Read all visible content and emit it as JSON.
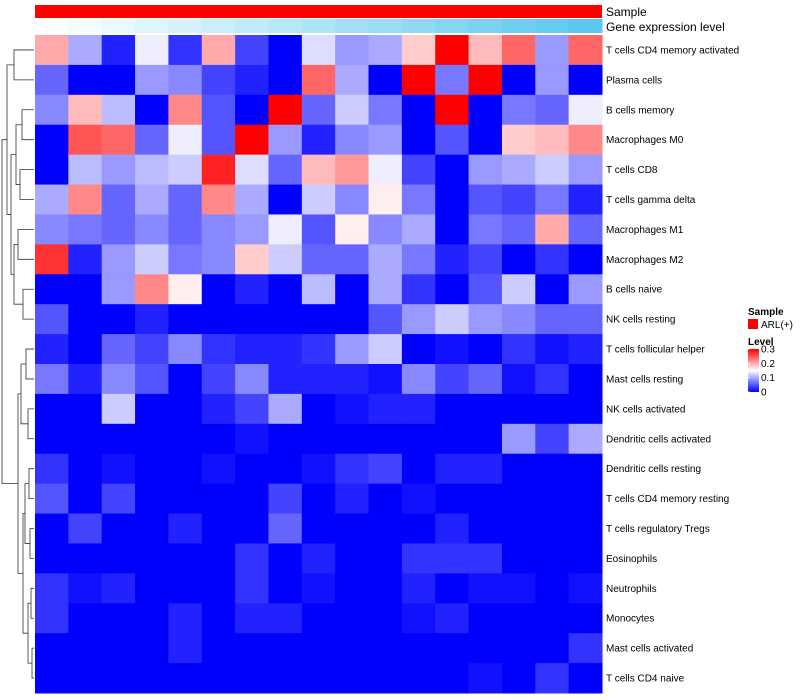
{
  "chart_data": {
    "type": "heatmap",
    "annotations": [
      {
        "name": "Sample",
        "values": [
          "ARL(+)"
        ],
        "colors": [
          "#ff0000"
        ]
      },
      {
        "name": "Gene expression level",
        "gradient_from": "#ffffff",
        "gradient_to": "#5cc8ef"
      }
    ],
    "rows": [
      "T cells CD4 memory activated",
      "Plasma cells",
      "B cells memory",
      "Macrophages M0",
      "T cells CD8",
      "T cells gamma delta",
      "Macrophages M1",
      "Macrophages M2",
      "B cells naive",
      "NK cells resting",
      "T cells follicular helper",
      "Mast cells resting",
      "NK cells activated",
      "Dendritic cells activated",
      "Dendritic cells resting",
      "T cells CD4 memory resting",
      "T cells regulatory  Tregs",
      "Eosinophils",
      "Neutrophils",
      "Monocytes",
      "Mast cells activated",
      "T cells CD4 naive"
    ],
    "n_columns": 17,
    "values": [
      [
        0.2,
        0.1,
        0.02,
        0.14,
        0.03,
        0.2,
        0.04,
        0.0,
        0.13,
        0.09,
        0.1,
        0.18,
        0.3,
        0.19,
        0.24,
        0.09,
        0.24
      ],
      [
        0.06,
        0.0,
        0.0,
        0.09,
        0.08,
        0.04,
        0.02,
        0.0,
        0.24,
        0.1,
        0.0,
        0.3,
        0.07,
        0.3,
        0.0,
        0.09,
        0.0
      ],
      [
        0.08,
        0.19,
        0.11,
        0.0,
        0.22,
        0.05,
        0.0,
        0.3,
        0.06,
        0.12,
        0.07,
        0.0,
        0.3,
        0.0,
        0.07,
        0.06,
        0.14
      ],
      [
        0.0,
        0.25,
        0.24,
        0.06,
        0.14,
        0.05,
        0.3,
        0.09,
        0.02,
        0.08,
        0.09,
        0.0,
        0.05,
        0.0,
        0.18,
        0.19,
        0.22
      ],
      [
        0.0,
        0.11,
        0.09,
        0.11,
        0.12,
        0.28,
        0.13,
        0.06,
        0.19,
        0.21,
        0.14,
        0.04,
        0.0,
        0.09,
        0.1,
        0.12,
        0.09
      ],
      [
        0.1,
        0.22,
        0.06,
        0.1,
        0.06,
        0.22,
        0.1,
        0.0,
        0.12,
        0.08,
        0.16,
        0.07,
        0.0,
        0.05,
        0.04,
        0.07,
        0.02
      ],
      [
        0.08,
        0.07,
        0.06,
        0.08,
        0.06,
        0.08,
        0.09,
        0.14,
        0.05,
        0.16,
        0.08,
        0.1,
        0.0,
        0.07,
        0.06,
        0.2,
        0.06
      ],
      [
        0.27,
        0.02,
        0.09,
        0.12,
        0.07,
        0.08,
        0.18,
        0.12,
        0.06,
        0.06,
        0.1,
        0.07,
        0.02,
        0.04,
        0.0,
        0.03,
        0.0
      ],
      [
        0.0,
        0.0,
        0.09,
        0.22,
        0.16,
        0.0,
        0.02,
        0.0,
        0.11,
        0.0,
        0.1,
        0.03,
        0.0,
        0.05,
        0.12,
        0.0,
        0.09
      ],
      [
        0.05,
        0.0,
        0.0,
        0.02,
        0.0,
        0.0,
        0.0,
        0.0,
        0.0,
        0.0,
        0.05,
        0.09,
        0.12,
        0.09,
        0.08,
        0.06,
        0.06
      ],
      [
        0.02,
        0.0,
        0.06,
        0.04,
        0.08,
        0.03,
        0.02,
        0.02,
        0.03,
        0.09,
        0.12,
        0.0,
        0.01,
        0.0,
        0.03,
        0.01,
        0.02
      ],
      [
        0.07,
        0.02,
        0.08,
        0.05,
        0.0,
        0.04,
        0.08,
        0.02,
        0.02,
        0.02,
        0.01,
        0.08,
        0.04,
        0.06,
        0.01,
        0.03,
        0.0
      ],
      [
        0.0,
        0.0,
        0.12,
        0.0,
        0.0,
        0.02,
        0.04,
        0.1,
        0.0,
        0.01,
        0.02,
        0.02,
        0.0,
        0.0,
        0.0,
        0.0,
        0.0
      ],
      [
        0.0,
        0.0,
        0.0,
        0.0,
        0.0,
        0.0,
        0.01,
        0.0,
        0.0,
        0.0,
        0.0,
        0.0,
        0.0,
        0.0,
        0.09,
        0.04,
        0.1
      ],
      [
        0.03,
        0.0,
        0.01,
        0.0,
        0.0,
        0.01,
        0.0,
        0.0,
        0.01,
        0.03,
        0.04,
        0.0,
        0.02,
        0.02,
        0.0,
        0.0,
        0.0
      ],
      [
        0.05,
        0.0,
        0.04,
        0.0,
        0.0,
        0.0,
        0.0,
        0.04,
        0.0,
        0.02,
        0.0,
        0.01,
        0.0,
        0.0,
        0.0,
        0.0,
        0.0
      ],
      [
        0.0,
        0.04,
        0.0,
        0.0,
        0.02,
        0.0,
        0.0,
        0.06,
        0.0,
        0.0,
        0.0,
        0.0,
        0.02,
        0.0,
        0.0,
        0.0,
        0.0
      ],
      [
        0.0,
        0.0,
        0.0,
        0.0,
        0.0,
        0.0,
        0.03,
        0.0,
        0.02,
        0.0,
        0.0,
        0.03,
        0.03,
        0.03,
        0.0,
        0.0,
        0.0
      ],
      [
        0.03,
        0.01,
        0.02,
        0.0,
        0.0,
        0.0,
        0.03,
        0.0,
        0.01,
        0.0,
        0.0,
        0.02,
        0.0,
        0.01,
        0.01,
        0.0,
        0.01
      ],
      [
        0.03,
        0.0,
        0.0,
        0.0,
        0.02,
        0.0,
        0.02,
        0.02,
        0.0,
        0.0,
        0.0,
        0.01,
        0.02,
        0.0,
        0.0,
        0.0,
        0.0
      ],
      [
        0.0,
        0.0,
        0.0,
        0.0,
        0.02,
        0.0,
        0.0,
        0.0,
        0.0,
        0.0,
        0.0,
        0.0,
        0.0,
        0.0,
        0.0,
        0.0,
        0.03
      ],
      [
        0.0,
        0.0,
        0.0,
        0.0,
        0.0,
        0.0,
        0.0,
        0.0,
        0.0,
        0.0,
        0.0,
        0.0,
        0.0,
        0.01,
        0.0,
        0.03,
        0.0
      ]
    ],
    "color_scale": {
      "low": "#0000ff",
      "mid": "#ffffff",
      "high": "#ff0000",
      "min": 0,
      "mid_value": 0.15,
      "max": 0.3
    },
    "legend": {
      "sample_title": "Sample",
      "sample_entry": "ARL(+)",
      "level_title": "Level",
      "ticks": [
        0.3,
        0.2,
        0.1,
        0
      ],
      "tick_labels": [
        "0.3",
        "0.2",
        "0.1",
        "0"
      ]
    },
    "row_dendrogram": true,
    "xlabel": "",
    "ylabel": ""
  }
}
